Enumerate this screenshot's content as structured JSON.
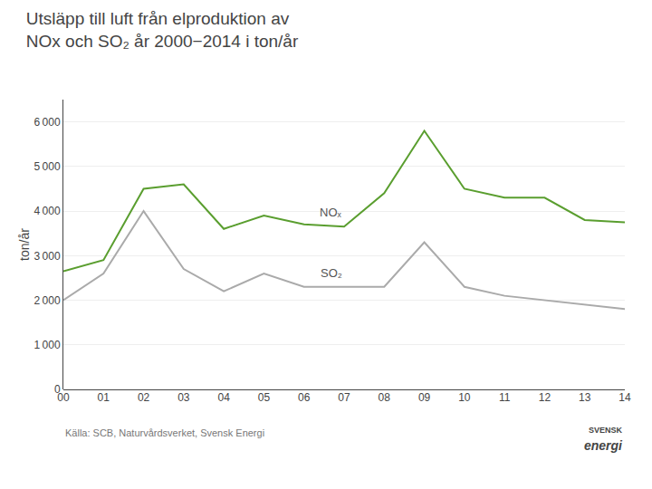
{
  "chart_data": {
    "type": "line",
    "title": "Utsläpp till luft från elproduktion av",
    "subtitle": "NOx och SO₂ år 2000−2014 i ton/år",
    "y_label": "ton/år",
    "categories": [
      "00",
      "01",
      "02",
      "03",
      "04",
      "05",
      "06",
      "07",
      "08",
      "09",
      "10",
      "11",
      "12",
      "13",
      "14"
    ],
    "series": [
      {
        "name": "NOₓ",
        "color": "#5a9e2f",
        "values": [
          2650,
          2900,
          4500,
          4600,
          3600,
          3900,
          3700,
          3650,
          4400,
          5800,
          4500,
          4300,
          4300,
          3800,
          3750
        ]
      },
      {
        "name": "SO₂",
        "color": "#aaaaaa",
        "values": [
          2000,
          2600,
          4000,
          2700,
          2200,
          2600,
          2300,
          2300,
          2300,
          3300,
          2300,
          2100,
          2000,
          1900,
          1800
        ]
      }
    ],
    "ylim": [
      0,
      6500
    ],
    "yticks": [
      0,
      {
        "value": 1000,
        "label": "1 000"
      },
      {
        "value": 2000,
        "label": "2 000"
      },
      {
        "value": 3000,
        "label": "3 000"
      },
      {
        "value": 4000,
        "label": "4 000"
      },
      {
        "value": 5000,
        "label": "5 000"
      },
      {
        "value": 6000,
        "label": "6 000"
      }
    ],
    "grid": true,
    "annotations": [
      "Källa: SCB, Naturvårdsverket, Svensk Energi",
      "SVENSK",
      "energi"
    ]
  }
}
